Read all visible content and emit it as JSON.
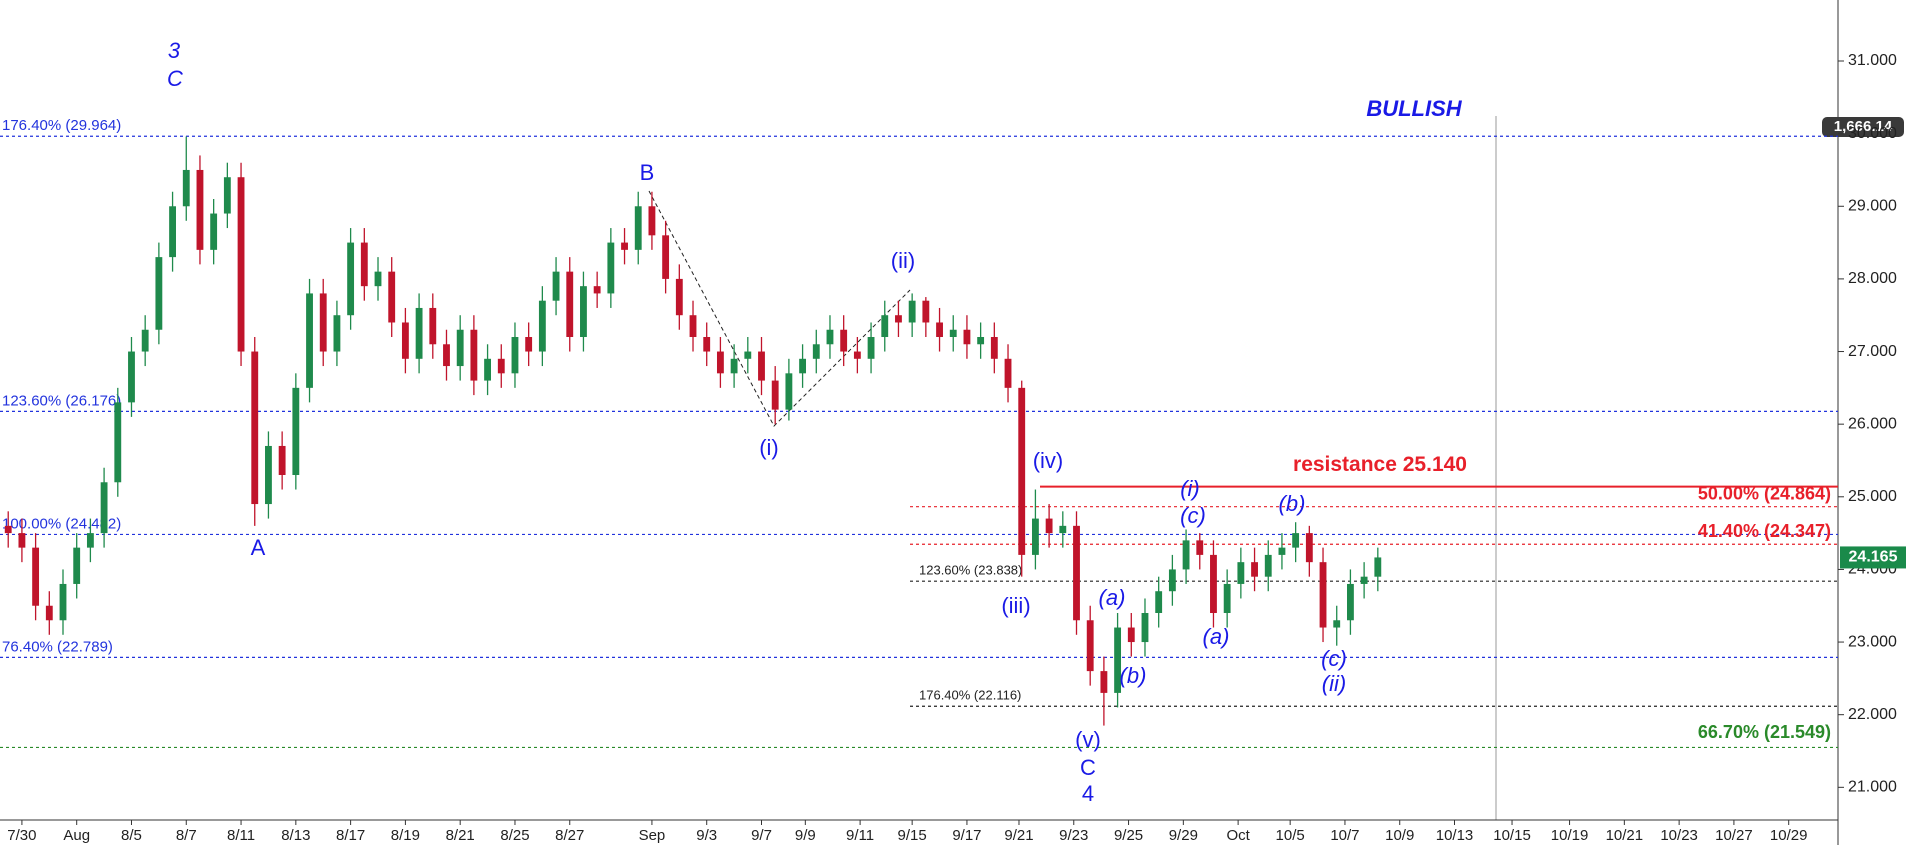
{
  "chart_data": {
    "type": "candlestick",
    "secondary_price_label": "1,666.14",
    "x": [
      -0.5,
      0,
      0.5,
      1,
      1.5,
      2,
      2.5,
      3,
      3.5,
      4,
      4.5,
      5,
      5.5,
      6,
      6.5,
      7,
      7.5,
      8,
      8.5,
      9,
      9.5,
      10,
      10.5,
      11,
      11.5,
      12,
      12.5,
      13,
      13.5,
      14,
      14.5,
      15,
      15.5,
      16,
      16.5,
      17,
      17.5,
      18,
      18.5,
      19,
      19.5,
      20,
      20.5,
      21,
      21.5,
      22,
      22.5,
      23,
      23.5,
      24,
      24.5,
      25,
      25.5,
      26,
      26.5,
      27,
      27.5,
      28,
      28.5,
      29,
      29.5,
      30,
      30.5,
      31,
      31.5,
      32,
      32.5,
      33,
      33.5,
      34,
      34.5,
      35,
      35.5,
      36,
      36.5,
      37,
      37.5,
      38,
      38.5,
      39,
      39.5,
      40,
      40.5,
      41,
      41.5,
      42,
      42.5,
      43,
      43.5,
      44,
      44.5,
      45,
      45.5,
      46,
      46.5,
      47,
      47.5,
      48,
      48.5,
      49,
      49.5
    ],
    "open": [
      24.6,
      24.5,
      24.3,
      23.5,
      23.3,
      23.8,
      24.3,
      24.5,
      25.2,
      26.3,
      27.0,
      27.3,
      28.3,
      29.0,
      29.5,
      28.4,
      28.9,
      29.4,
      27.0,
      24.9,
      25.7,
      25.3,
      26.5,
      27.8,
      27.0,
      27.5,
      28.5,
      27.9,
      28.1,
      27.4,
      26.9,
      27.6,
      27.1,
      26.8,
      27.3,
      26.6,
      26.9,
      26.7,
      27.2,
      27.0,
      27.7,
      28.1,
      27.2,
      27.9,
      27.8,
      28.5,
      28.4,
      29.0,
      28.6,
      28.0,
      27.5,
      27.2,
      27.0,
      26.7,
      26.9,
      27.0,
      26.6,
      26.2,
      26.7,
      26.9,
      27.1,
      27.3,
      27.0,
      26.9,
      27.2,
      27.5,
      27.4,
      27.7,
      27.4,
      27.2,
      27.3,
      27.1,
      27.2,
      26.9,
      26.5,
      24.2,
      24.7,
      24.5,
      24.6,
      23.3,
      22.6,
      22.3,
      23.2,
      23.0,
      23.4,
      23.7,
      24.0,
      24.4,
      24.2,
      23.4,
      23.8,
      24.1,
      23.9,
      24.2,
      24.3,
      24.5,
      24.1,
      23.2,
      23.3,
      23.8,
      23.9
    ],
    "high": [
      24.8,
      24.7,
      24.5,
      23.7,
      24.0,
      24.5,
      24.7,
      25.4,
      26.5,
      27.2,
      27.5,
      28.5,
      29.2,
      29.96,
      29.7,
      29.1,
      29.6,
      29.6,
      27.2,
      25.9,
      25.9,
      26.7,
      28.0,
      28.0,
      27.7,
      28.7,
      28.7,
      28.3,
      28.3,
      27.6,
      27.8,
      27.8,
      27.3,
      27.5,
      27.5,
      27.1,
      27.1,
      27.4,
      27.4,
      27.9,
      28.3,
      28.3,
      28.1,
      28.1,
      28.7,
      28.7,
      29.2,
      29.2,
      28.8,
      28.2,
      27.7,
      27.4,
      27.2,
      27.1,
      27.2,
      27.2,
      26.8,
      26.9,
      27.1,
      27.3,
      27.5,
      27.5,
      27.2,
      27.4,
      27.7,
      27.7,
      27.8,
      27.75,
      27.6,
      27.5,
      27.5,
      27.4,
      27.4,
      27.1,
      26.6,
      25.1,
      24.9,
      24.8,
      24.8,
      23.5,
      22.8,
      23.4,
      23.4,
      23.6,
      23.9,
      24.2,
      24.55,
      24.5,
      24.4,
      24.0,
      24.3,
      24.3,
      24.4,
      24.5,
      24.65,
      24.6,
      24.3,
      23.5,
      24.0,
      24.1,
      24.3
    ],
    "low": [
      24.3,
      24.1,
      23.3,
      23.1,
      23.1,
      23.6,
      24.1,
      24.3,
      25.0,
      26.1,
      26.8,
      27.1,
      28.1,
      28.8,
      28.2,
      28.2,
      28.7,
      26.8,
      24.6,
      24.7,
      25.1,
      25.1,
      26.3,
      26.8,
      26.8,
      27.3,
      27.7,
      27.7,
      27.2,
      26.7,
      26.7,
      26.9,
      26.6,
      26.6,
      26.4,
      26.4,
      26.5,
      26.5,
      26.8,
      26.8,
      27.5,
      27.0,
      27.0,
      27.6,
      27.6,
      28.2,
      28.2,
      28.4,
      27.8,
      27.3,
      27.0,
      26.8,
      26.5,
      26.5,
      26.7,
      26.4,
      26.0,
      26.05,
      26.5,
      26.7,
      26.9,
      26.8,
      26.7,
      26.7,
      27.0,
      27.2,
      27.2,
      27.2,
      27.0,
      27.0,
      26.9,
      26.9,
      26.7,
      26.3,
      23.9,
      24.0,
      24.3,
      24.3,
      23.1,
      22.4,
      21.85,
      22.1,
      22.8,
      22.8,
      23.2,
      23.5,
      23.8,
      24.0,
      23.2,
      23.2,
      23.6,
      23.7,
      23.7,
      24.0,
      24.1,
      23.9,
      23.0,
      22.95,
      23.1,
      23.6,
      23.7
    ],
    "close": [
      24.5,
      24.3,
      23.5,
      23.3,
      23.8,
      24.3,
      24.5,
      25.2,
      26.3,
      27.0,
      27.3,
      28.3,
      29.0,
      29.5,
      28.4,
      28.9,
      29.4,
      27.0,
      24.9,
      25.7,
      25.3,
      26.5,
      27.8,
      27.0,
      27.5,
      28.5,
      27.9,
      28.1,
      27.4,
      26.9,
      27.6,
      27.1,
      26.8,
      27.3,
      26.6,
      26.9,
      26.7,
      27.2,
      27.0,
      27.7,
      28.1,
      27.2,
      27.9,
      27.8,
      28.5,
      28.4,
      29.0,
      28.6,
      28.0,
      27.5,
      27.2,
      27.0,
      26.7,
      26.9,
      27.0,
      26.6,
      26.2,
      26.7,
      26.9,
      27.1,
      27.3,
      27.0,
      26.9,
      27.2,
      27.5,
      27.4,
      27.7,
      27.4,
      27.2,
      27.3,
      27.1,
      27.2,
      26.9,
      26.5,
      24.2,
      24.7,
      24.5,
      24.6,
      23.3,
      22.6,
      22.3,
      23.2,
      23.0,
      23.4,
      23.7,
      24.0,
      24.4,
      24.2,
      23.4,
      23.8,
      24.1,
      23.9,
      24.2,
      24.3,
      24.5,
      24.1,
      23.2,
      23.3,
      23.8,
      23.9,
      24.165
    ],
    "up_color": "#1f8a4c",
    "down_color": "#c0142b",
    "last_price_color": "#1a8a4a",
    "xlim": [
      -0.8,
      66.3
    ],
    "xticks": [
      {
        "value": 0,
        "label": "7/30"
      },
      {
        "value": 2,
        "label": "Aug"
      },
      {
        "value": 4,
        "label": "8/5"
      },
      {
        "value": 6,
        "label": "8/7"
      },
      {
        "value": 8,
        "label": "8/11"
      },
      {
        "value": 10,
        "label": "8/13"
      },
      {
        "value": 12,
        "label": "8/17"
      },
      {
        "value": 14,
        "label": "8/19"
      },
      {
        "value": 16,
        "label": "8/21"
      },
      {
        "value": 18,
        "label": "8/25"
      },
      {
        "value": 20,
        "label": "8/27"
      },
      {
        "value": 23,
        "label": "Sep"
      },
      {
        "value": 25,
        "label": "9/3"
      },
      {
        "value": 27,
        "label": "9/7"
      },
      {
        "value": 28.6,
        "label": "9/9"
      },
      {
        "value": 30.6,
        "label": "9/11"
      },
      {
        "value": 32.5,
        "label": "9/15"
      },
      {
        "value": 34.5,
        "label": "9/17"
      },
      {
        "value": 36.4,
        "label": "9/21"
      },
      {
        "value": 38.4,
        "label": "9/23"
      },
      {
        "value": 40.4,
        "label": "9/25"
      },
      {
        "value": 42.4,
        "label": "9/29"
      },
      {
        "value": 44.4,
        "label": "Oct"
      },
      {
        "value": 46.3,
        "label": "10/5"
      },
      {
        "value": 48.3,
        "label": "10/7"
      },
      {
        "value": 50.3,
        "label": "10/9"
      },
      {
        "value": 52.3,
        "label": "10/13"
      },
      {
        "value": 54.4,
        "label": "10/15"
      },
      {
        "value": 56.5,
        "label": "10/19"
      },
      {
        "value": 58.5,
        "label": "10/21"
      },
      {
        "value": 60.5,
        "label": "10/23"
      },
      {
        "value": 62.5,
        "label": "10/27"
      },
      {
        "value": 64.5,
        "label": "10/29"
      }
    ],
    "ylim": [
      20.55,
      31.84
    ],
    "yticks": [
      {
        "value": 21,
        "label": "21.000"
      },
      {
        "value": 22,
        "label": "22.000"
      },
      {
        "value": 23,
        "label": "23.000"
      },
      {
        "value": 24,
        "label": "24.000"
      },
      {
        "value": 25,
        "label": "25.000"
      },
      {
        "value": 26,
        "label": "26.000"
      },
      {
        "value": 27,
        "label": "27.000"
      },
      {
        "value": 28,
        "label": "28.000"
      },
      {
        "value": 29,
        "label": "29.000"
      },
      {
        "value": 30,
        "label": "30.000"
      },
      {
        "value": 31,
        "label": "31.000"
      }
    ],
    "levels": [
      {
        "value": 29.964,
        "label": "176.40% (29.964)",
        "color": "#2233dd",
        "dash": "dotted"
      },
      {
        "value": 26.176,
        "label": "123.60% (26.176)",
        "color": "#2233dd",
        "dash": "dotted"
      },
      {
        "value": 24.482,
        "label": "100.00% (24.482)",
        "color": "#2233dd",
        "dash": "dotted"
      },
      {
        "value": 22.789,
        "label": "76.40% (22.789)",
        "color": "#2233dd",
        "dash": "dotted"
      },
      {
        "value": 23.838,
        "label": "123.60% (23.838)",
        "color": "#222222",
        "dash": "dotted"
      },
      {
        "value": 22.116,
        "label": "176.40% (22.116)",
        "color": "#222222",
        "dash": "dotted"
      },
      {
        "value": 24.864,
        "label": "50.00% (24.864)",
        "color": "#e8202a",
        "dash": "dotted"
      },
      {
        "value": 24.347,
        "label": "41.40% (24.347)",
        "color": "#e8202a",
        "dash": "dotted"
      },
      {
        "value": 21.549,
        "label": "66.70% (21.549)",
        "color": "#2a8a2a",
        "dash": "dotted"
      },
      {
        "value": 25.14,
        "label": "resistance 25.140",
        "color": "#e8202a",
        "dash": "solid"
      }
    ],
    "annotations": [
      "3",
      "C",
      "B",
      "A",
      "(i)",
      "(ii)",
      "(iii)",
      "(iv)",
      "(v)",
      "C",
      "4",
      "(a)",
      "(b)",
      "(i)",
      "(c)",
      "(a)",
      "(b)",
      "(c)",
      "(ii)",
      "BULLISH"
    ],
    "annotation_color": "#1a1ae6"
  }
}
